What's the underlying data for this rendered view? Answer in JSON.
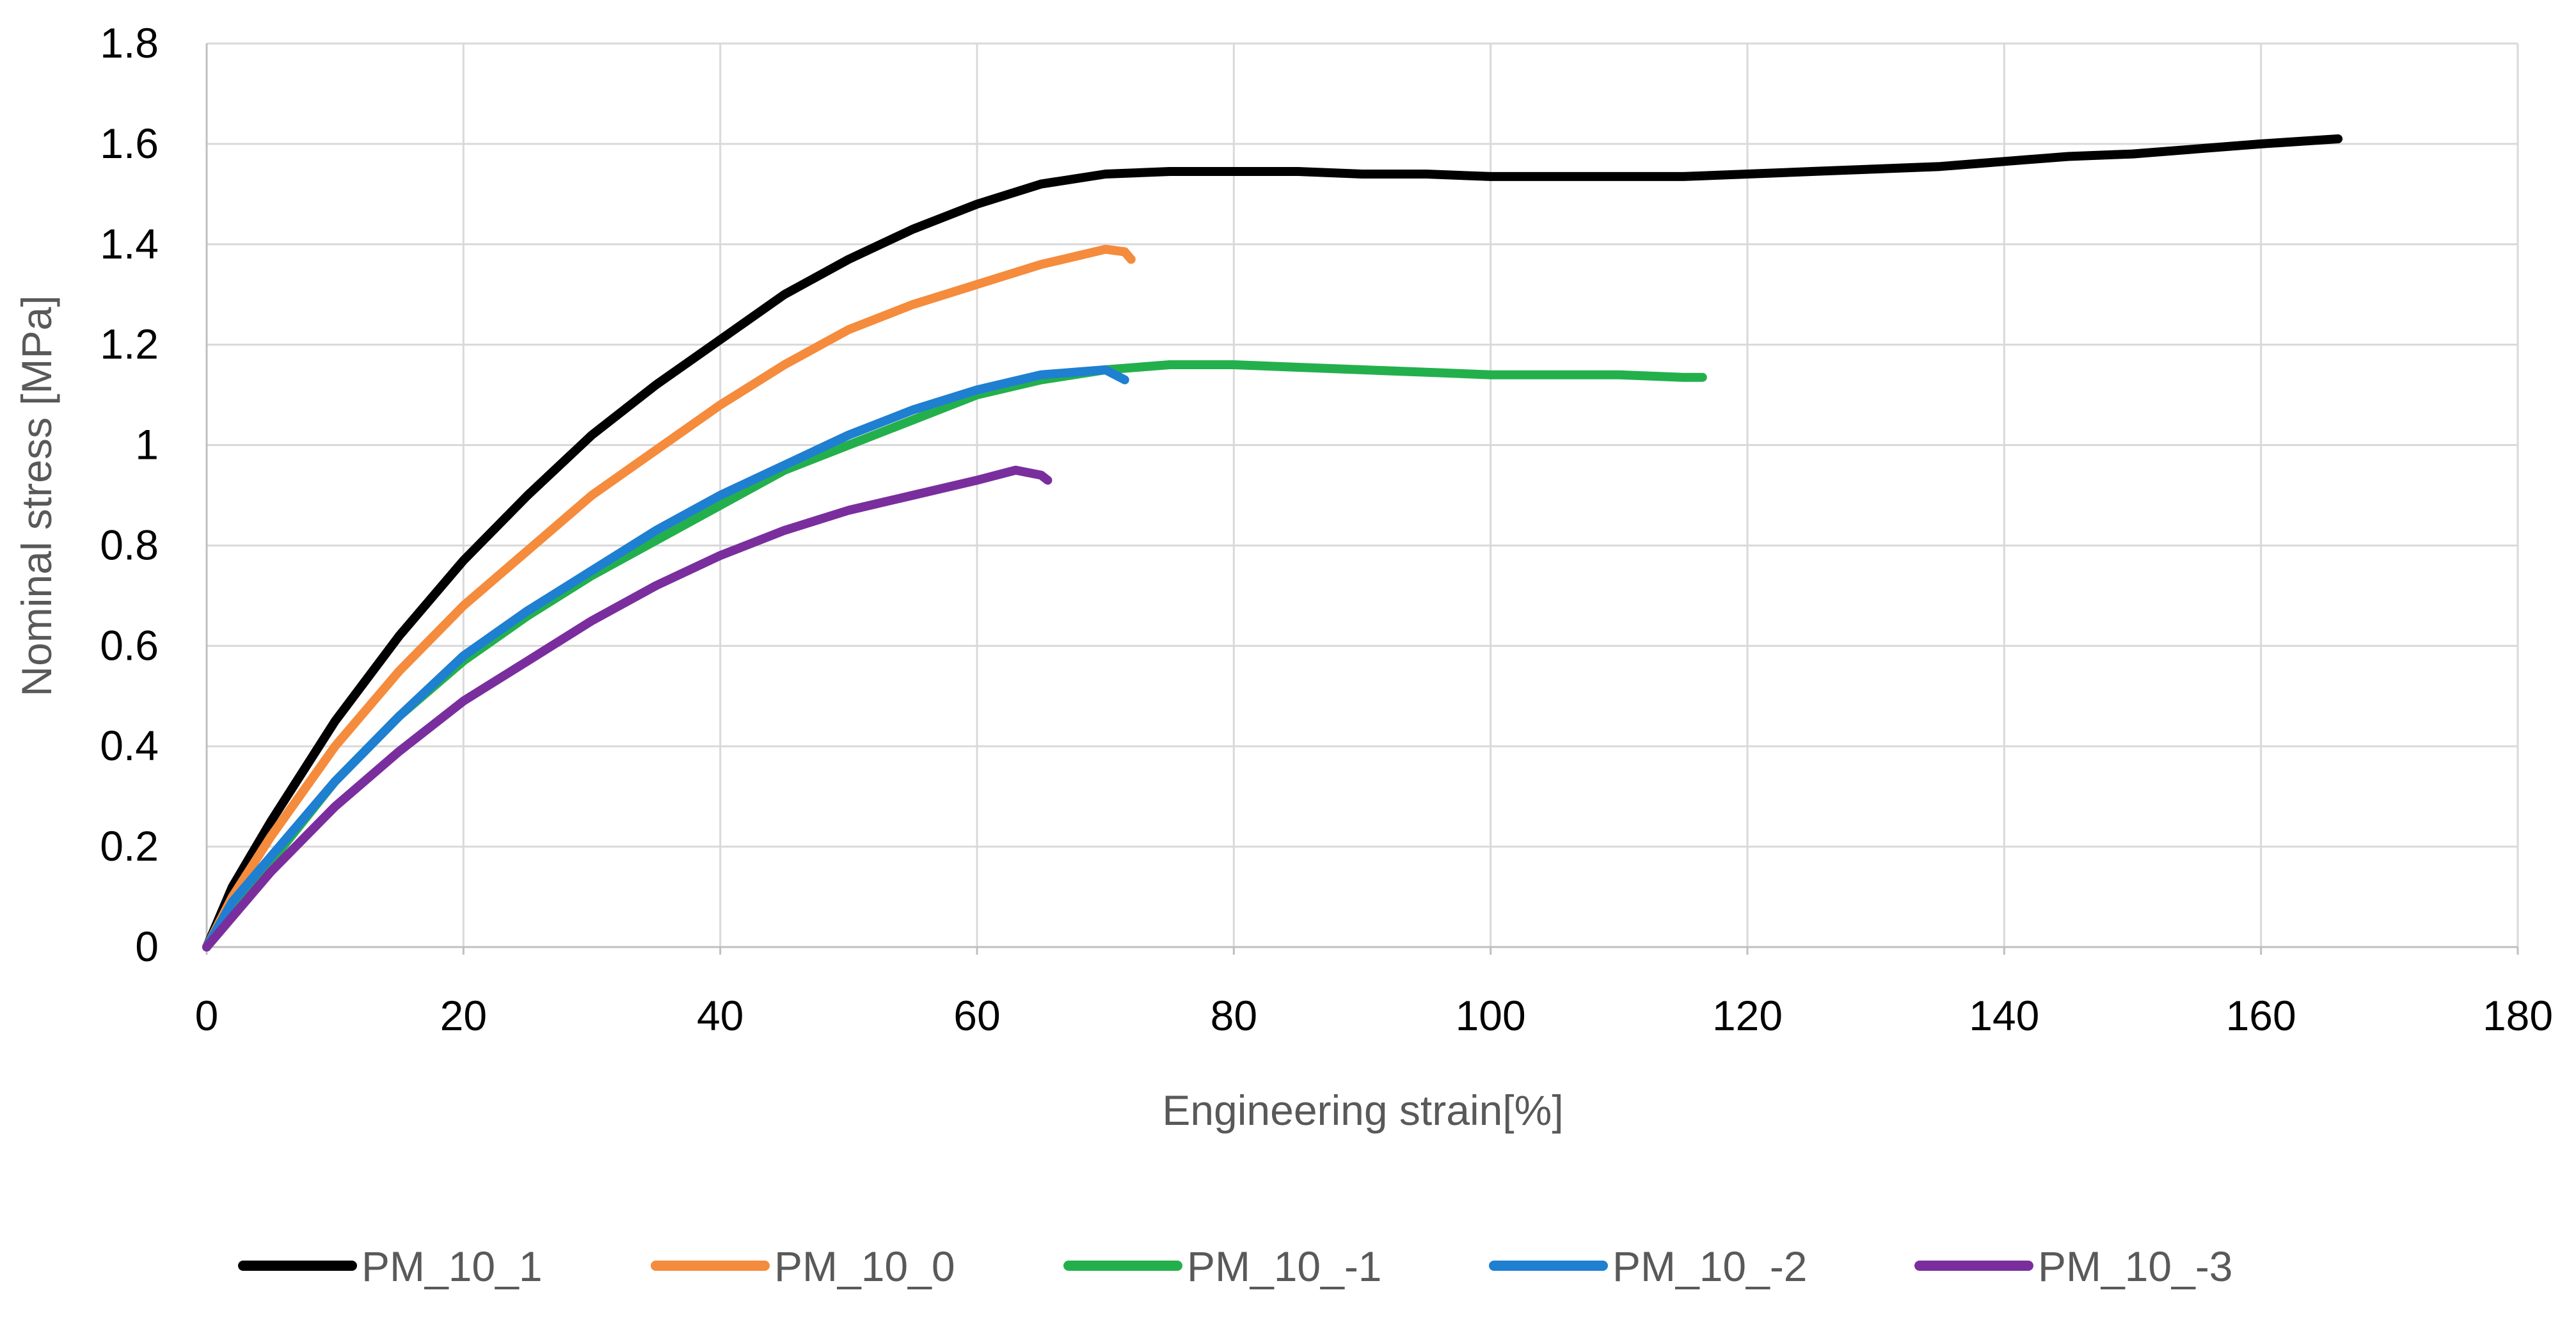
{
  "chart_data": {
    "type": "line",
    "title": "",
    "xlabel": "Engineering strain[%]",
    "ylabel": "Nominal stress [MPa]",
    "xlim": [
      0,
      180
    ],
    "ylim": [
      0,
      1.8
    ],
    "xticks": [
      0,
      20,
      40,
      60,
      80,
      100,
      120,
      140,
      160,
      180
    ],
    "yticks": [
      0,
      0.2,
      0.4,
      0.6,
      0.8,
      1,
      1.2,
      1.4,
      1.6,
      1.8
    ],
    "xtick_labels": [
      "0",
      "20",
      "40",
      "60",
      "80",
      "100",
      "120",
      "140",
      "160",
      "180"
    ],
    "ytick_labels": [
      "0",
      "0.2",
      "0.4",
      "0.6",
      "0.8",
      "1",
      "1.2",
      "1.4",
      "1.6",
      "1.8"
    ],
    "grid": true,
    "legend_position": "bottom",
    "series": [
      {
        "name": "PM_10_1",
        "color": "#000000",
        "points": [
          [
            0,
            0
          ],
          [
            2,
            0.12
          ],
          [
            5,
            0.25
          ],
          [
            10,
            0.45
          ],
          [
            15,
            0.62
          ],
          [
            20,
            0.77
          ],
          [
            25,
            0.9
          ],
          [
            30,
            1.02
          ],
          [
            35,
            1.12
          ],
          [
            40,
            1.21
          ],
          [
            45,
            1.3
          ],
          [
            50,
            1.37
          ],
          [
            55,
            1.43
          ],
          [
            60,
            1.48
          ],
          [
            65,
            1.52
          ],
          [
            70,
            1.54
          ],
          [
            75,
            1.545
          ],
          [
            80,
            1.545
          ],
          [
            85,
            1.545
          ],
          [
            90,
            1.54
          ],
          [
            95,
            1.54
          ],
          [
            100,
            1.535
          ],
          [
            105,
            1.535
          ],
          [
            110,
            1.535
          ],
          [
            115,
            1.535
          ],
          [
            120,
            1.54
          ],
          [
            125,
            1.545
          ],
          [
            130,
            1.55
          ],
          [
            135,
            1.555
          ],
          [
            140,
            1.565
          ],
          [
            145,
            1.575
          ],
          [
            150,
            1.58
          ],
          [
            155,
            1.59
          ],
          [
            160,
            1.6
          ],
          [
            166,
            1.61
          ]
        ]
      },
      {
        "name": "PM_10_0",
        "color": "#f58b3c",
        "points": [
          [
            0,
            0
          ],
          [
            2,
            0.1
          ],
          [
            5,
            0.22
          ],
          [
            10,
            0.4
          ],
          [
            15,
            0.55
          ],
          [
            20,
            0.68
          ],
          [
            25,
            0.79
          ],
          [
            30,
            0.9
          ],
          [
            35,
            0.99
          ],
          [
            40,
            1.08
          ],
          [
            45,
            1.16
          ],
          [
            50,
            1.23
          ],
          [
            55,
            1.28
          ],
          [
            60,
            1.32
          ],
          [
            65,
            1.36
          ],
          [
            70,
            1.39
          ],
          [
            71.5,
            1.385
          ],
          [
            72,
            1.37
          ]
        ]
      },
      {
        "name": "PM_10_-1",
        "color": "#23b04c",
        "points": [
          [
            0,
            0
          ],
          [
            2,
            0.08
          ],
          [
            5,
            0.17
          ],
          [
            10,
            0.33
          ],
          [
            15,
            0.46
          ],
          [
            20,
            0.57
          ],
          [
            25,
            0.66
          ],
          [
            30,
            0.74
          ],
          [
            35,
            0.81
          ],
          [
            40,
            0.88
          ],
          [
            45,
            0.95
          ],
          [
            50,
            1.0
          ],
          [
            55,
            1.05
          ],
          [
            60,
            1.1
          ],
          [
            65,
            1.13
          ],
          [
            70,
            1.15
          ],
          [
            75,
            1.16
          ],
          [
            80,
            1.16
          ],
          [
            85,
            1.155
          ],
          [
            90,
            1.15
          ],
          [
            95,
            1.145
          ],
          [
            100,
            1.14
          ],
          [
            105,
            1.14
          ],
          [
            110,
            1.14
          ],
          [
            115,
            1.135
          ],
          [
            116.5,
            1.135
          ]
        ]
      },
      {
        "name": "PM_10_-2",
        "color": "#1f7fd1",
        "points": [
          [
            0,
            0
          ],
          [
            2,
            0.09
          ],
          [
            5,
            0.18
          ],
          [
            10,
            0.33
          ],
          [
            15,
            0.46
          ],
          [
            20,
            0.58
          ],
          [
            25,
            0.67
          ],
          [
            30,
            0.75
          ],
          [
            35,
            0.83
          ],
          [
            40,
            0.9
          ],
          [
            45,
            0.96
          ],
          [
            50,
            1.02
          ],
          [
            55,
            1.07
          ],
          [
            60,
            1.11
          ],
          [
            65,
            1.14
          ],
          [
            70,
            1.15
          ],
          [
            71.5,
            1.13
          ]
        ]
      },
      {
        "name": "PM_10_-3",
        "color": "#7a2e9e",
        "points": [
          [
            0,
            0
          ],
          [
            2,
            0.06
          ],
          [
            5,
            0.15
          ],
          [
            10,
            0.28
          ],
          [
            15,
            0.39
          ],
          [
            20,
            0.49
          ],
          [
            25,
            0.57
          ],
          [
            30,
            0.65
          ],
          [
            35,
            0.72
          ],
          [
            40,
            0.78
          ],
          [
            45,
            0.83
          ],
          [
            50,
            0.87
          ],
          [
            55,
            0.9
          ],
          [
            60,
            0.93
          ],
          [
            63,
            0.95
          ],
          [
            65,
            0.94
          ],
          [
            65.5,
            0.93
          ]
        ]
      }
    ]
  }
}
